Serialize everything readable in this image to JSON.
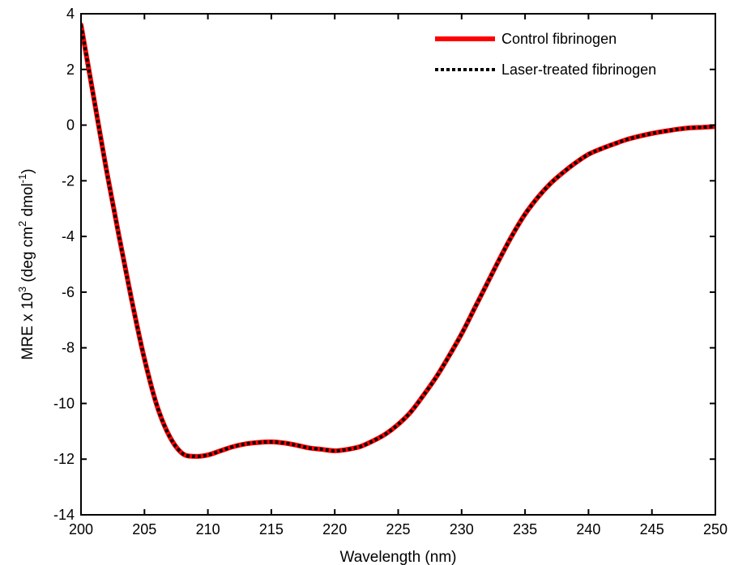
{
  "chart_data": {
    "type": "line",
    "title": "",
    "xlabel": "Wavelength (nm)",
    "ylabel": {
      "prefix": "MRE x 10",
      "prefix_sup": "3",
      "unit_a": " (deg cm",
      "unit_a_sup": "2",
      "unit_b": " dmol",
      "unit_b_sup": "-1",
      "unit_end": ")"
    },
    "xlim": [
      200,
      250
    ],
    "ylim": [
      -14,
      4
    ],
    "xticks": [
      200,
      205,
      210,
      215,
      220,
      225,
      230,
      235,
      240,
      245,
      250
    ],
    "yticks": [
      -14,
      -12,
      -10,
      -8,
      -6,
      -4,
      -2,
      0,
      2,
      4
    ],
    "grid": false,
    "legend_position": "top-right",
    "series": [
      {
        "name": "Control fibrinogen",
        "color": "#ff0000",
        "style": "solid",
        "x": [
          200,
          201,
          202,
          203,
          204,
          205,
          206,
          207,
          208,
          209,
          210,
          211,
          212,
          213,
          214,
          215,
          216,
          217,
          218,
          219,
          220,
          221,
          222,
          223,
          224,
          225,
          226,
          227,
          228,
          229,
          230,
          231,
          232,
          233,
          234,
          235,
          236,
          237,
          238,
          239,
          240,
          241,
          242,
          243,
          244,
          245,
          246,
          247,
          248,
          249,
          250
        ],
        "y": [
          3.6,
          1.0,
          -1.6,
          -4.0,
          -6.3,
          -8.4,
          -10.1,
          -11.2,
          -11.8,
          -11.9,
          -11.85,
          -11.7,
          -11.55,
          -11.45,
          -11.4,
          -11.38,
          -11.42,
          -11.5,
          -11.6,
          -11.65,
          -11.7,
          -11.65,
          -11.55,
          -11.35,
          -11.1,
          -10.75,
          -10.3,
          -9.7,
          -9.05,
          -8.3,
          -7.5,
          -6.6,
          -5.7,
          -4.8,
          -3.95,
          -3.2,
          -2.6,
          -2.1,
          -1.7,
          -1.35,
          -1.05,
          -0.85,
          -0.68,
          -0.52,
          -0.4,
          -0.3,
          -0.22,
          -0.15,
          -0.1,
          -0.08,
          -0.05
        ]
      },
      {
        "name": "Laser-treated fibrinogen",
        "color": "#000000",
        "style": "dotted",
        "x": [
          200,
          201,
          202,
          203,
          204,
          205,
          206,
          207,
          208,
          209,
          210,
          211,
          212,
          213,
          214,
          215,
          216,
          217,
          218,
          219,
          220,
          221,
          222,
          223,
          224,
          225,
          226,
          227,
          228,
          229,
          230,
          231,
          232,
          233,
          234,
          235,
          236,
          237,
          238,
          239,
          240,
          241,
          242,
          243,
          244,
          245,
          246,
          247,
          248,
          249,
          250
        ],
        "y": [
          3.6,
          1.0,
          -1.6,
          -4.0,
          -6.3,
          -8.4,
          -10.1,
          -11.2,
          -11.8,
          -11.9,
          -11.85,
          -11.7,
          -11.55,
          -11.45,
          -11.4,
          -11.38,
          -11.42,
          -11.5,
          -11.6,
          -11.65,
          -11.7,
          -11.65,
          -11.55,
          -11.35,
          -11.1,
          -10.75,
          -10.3,
          -9.7,
          -9.05,
          -8.3,
          -7.5,
          -6.6,
          -5.7,
          -4.8,
          -3.95,
          -3.2,
          -2.6,
          -2.1,
          -1.7,
          -1.35,
          -1.05,
          -0.85,
          -0.68,
          -0.52,
          -0.4,
          -0.3,
          -0.22,
          -0.15,
          -0.1,
          -0.08,
          -0.05
        ]
      }
    ]
  }
}
